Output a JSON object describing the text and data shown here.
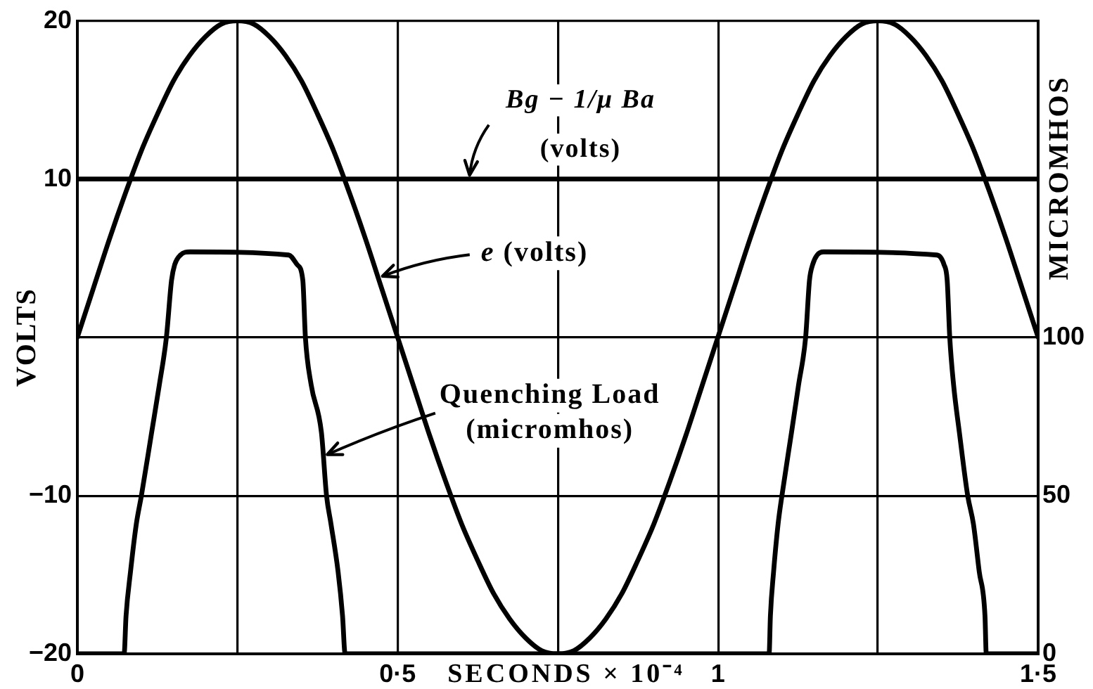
{
  "chart_data": {
    "type": "line",
    "xlabel": "SECONDS × 10⁻⁴",
    "ylabel": "VOLTS",
    "y2label": "MICROMHOS",
    "xlim": [
      0,
      1.5
    ],
    "xticks": [
      0,
      {
        "value": 0.25,
        "label": null
      },
      {
        "value": 0.5,
        "label": "0·5"
      },
      {
        "value": 0.75,
        "label": null
      },
      1,
      {
        "value": 1.25,
        "label": null
      },
      {
        "value": 1.5,
        "label": "1·5"
      }
    ],
    "ylim": [
      -20,
      20
    ],
    "yticks": [
      {
        "value": -20,
        "label": "−20"
      },
      {
        "value": -10,
        "label": "−10"
      },
      {
        "value": 0,
        "label": null
      },
      10,
      20
    ],
    "y2lim": [
      0,
      200
    ],
    "y2ticks": [
      0,
      50,
      100
    ],
    "grid": true,
    "marker": "none",
    "line_style": "solid",
    "ref_lines": [
      {
        "axis": "y",
        "value": 10,
        "label": "Bg − 1/μ Ba (volts)",
        "color": "#000000"
      }
    ],
    "annotations": [
      {
        "text": "e (volts)",
        "x": 0.47,
        "y": 3.8
      },
      {
        "text": "Quenching Load (micromhos)",
        "x": 0.384,
        "y": -7.5
      }
    ],
    "series": [
      {
        "color": "#000000",
        "x": [
          0,
          0.025,
          0.05,
          0.075,
          0.1,
          0.125,
          0.15,
          0.175,
          0.2,
          0.225,
          0.25,
          0.275,
          0.3,
          0.325,
          0.35,
          0.375,
          0.4,
          0.425,
          0.45,
          0.475,
          0.5,
          0.525,
          0.55,
          0.575,
          0.6,
          0.625,
          0.65,
          0.675,
          0.7,
          0.725,
          0.75,
          0.775,
          0.8,
          0.825,
          0.85,
          0.875,
          0.9,
          0.925,
          0.95,
          0.975,
          1,
          1.025,
          1.05,
          1.075,
          1.1,
          1.125,
          1.15,
          1.175,
          1.2,
          1.225,
          1.25,
          1.275,
          1.3,
          1.325,
          1.35,
          1.375,
          1.4,
          1.425,
          1.45,
          1.475,
          1.5
        ],
        "values": [
          0,
          3.1,
          6.2,
          9.1,
          11.8,
          14.1,
          16.2,
          17.8,
          19,
          19.8,
          20,
          19.8,
          19,
          17.8,
          16.2,
          14.1,
          11.8,
          9.1,
          6.2,
          3.1,
          0,
          -3.1,
          -6.2,
          -9.1,
          -11.8,
          -14.1,
          -16.2,
          -17.8,
          -19,
          -19.8,
          -20,
          -19.8,
          -19,
          -17.8,
          -16.2,
          -14.1,
          -11.8,
          -9.1,
          -6.2,
          -3.1,
          0,
          3.1,
          6.2,
          9.1,
          11.8,
          14.1,
          16.2,
          17.8,
          19,
          19.8,
          20,
          19.8,
          19,
          17.8,
          16.2,
          14.1,
          11.8,
          9.1,
          6.2,
          3.1,
          0
        ]
      },
      {
        "color": "#000000",
        "axis": "y2",
        "x": [
          0,
          0.073,
          0.076,
          0.083,
          0.092,
          0.1,
          0.116,
          0.128,
          0.139,
          0.147,
          0.152,
          0.161,
          0.176,
          0.33,
          0.343,
          0.352,
          0.356,
          0.365,
          0.381,
          0.389,
          0.396,
          0.407,
          0.414,
          0.418,
          1.08,
          1.082,
          1.087,
          1.094,
          1.1,
          1.115,
          1.126,
          1.137,
          1.143,
          1.148,
          1.155,
          1.165,
          1.342,
          1.353,
          1.358,
          1.362,
          1.368,
          1.377,
          1.39,
          1.399,
          1.408,
          1.417,
          1.419,
          1.5
        ],
        "values": [
          0,
          0,
          12,
          26,
          41,
          50,
          70,
          85,
          100,
          118,
          123,
          126,
          127,
          126,
          123,
          118,
          100,
          85,
          70,
          50,
          41,
          26,
          12,
          0,
          0,
          12,
          26,
          41,
          50,
          70,
          85,
          100,
          118,
          123,
          126,
          127,
          126,
          123,
          118,
          100,
          85,
          70,
          50,
          41,
          26,
          12,
          0,
          0
        ]
      }
    ]
  }
}
